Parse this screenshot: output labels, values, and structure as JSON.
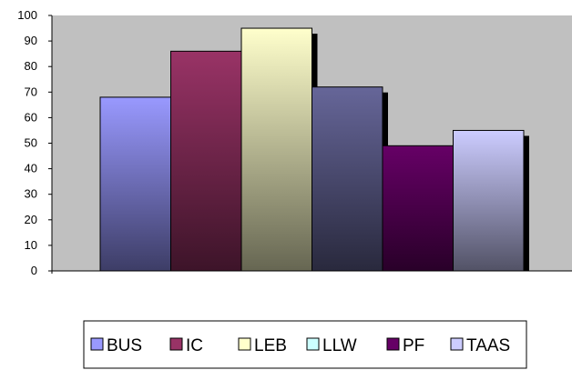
{
  "chart_data": {
    "type": "bar",
    "categories": [
      "BUS",
      "IC",
      "LEB",
      "LLW",
      "PF",
      "TAAS"
    ],
    "values": [
      68,
      86,
      95,
      72,
      49,
      55
    ],
    "colors": [
      "#9999ff",
      "#993366",
      "#ffffcc",
      "#ccffff",
      "#660066",
      "#ccccff"
    ],
    "bar_fills": [
      "#9999ff",
      "#993366",
      "#ffffcc",
      "#666699",
      "#660066",
      "#ccccff"
    ],
    "ylim": [
      0,
      100
    ],
    "yticks": [
      0,
      10,
      20,
      30,
      40,
      50,
      60,
      70,
      80,
      90,
      100
    ],
    "ytick_labels": [
      "0",
      "10",
      "20",
      "30",
      "40",
      "50",
      "60",
      "70",
      "80",
      "90",
      "100"
    ],
    "plot_background": "#c0c0c0",
    "grid": false,
    "legend": {
      "position": "bottom",
      "entries": [
        "BUS",
        "IC",
        "LEB",
        "LLW",
        "PF",
        "TAAS"
      ]
    }
  }
}
